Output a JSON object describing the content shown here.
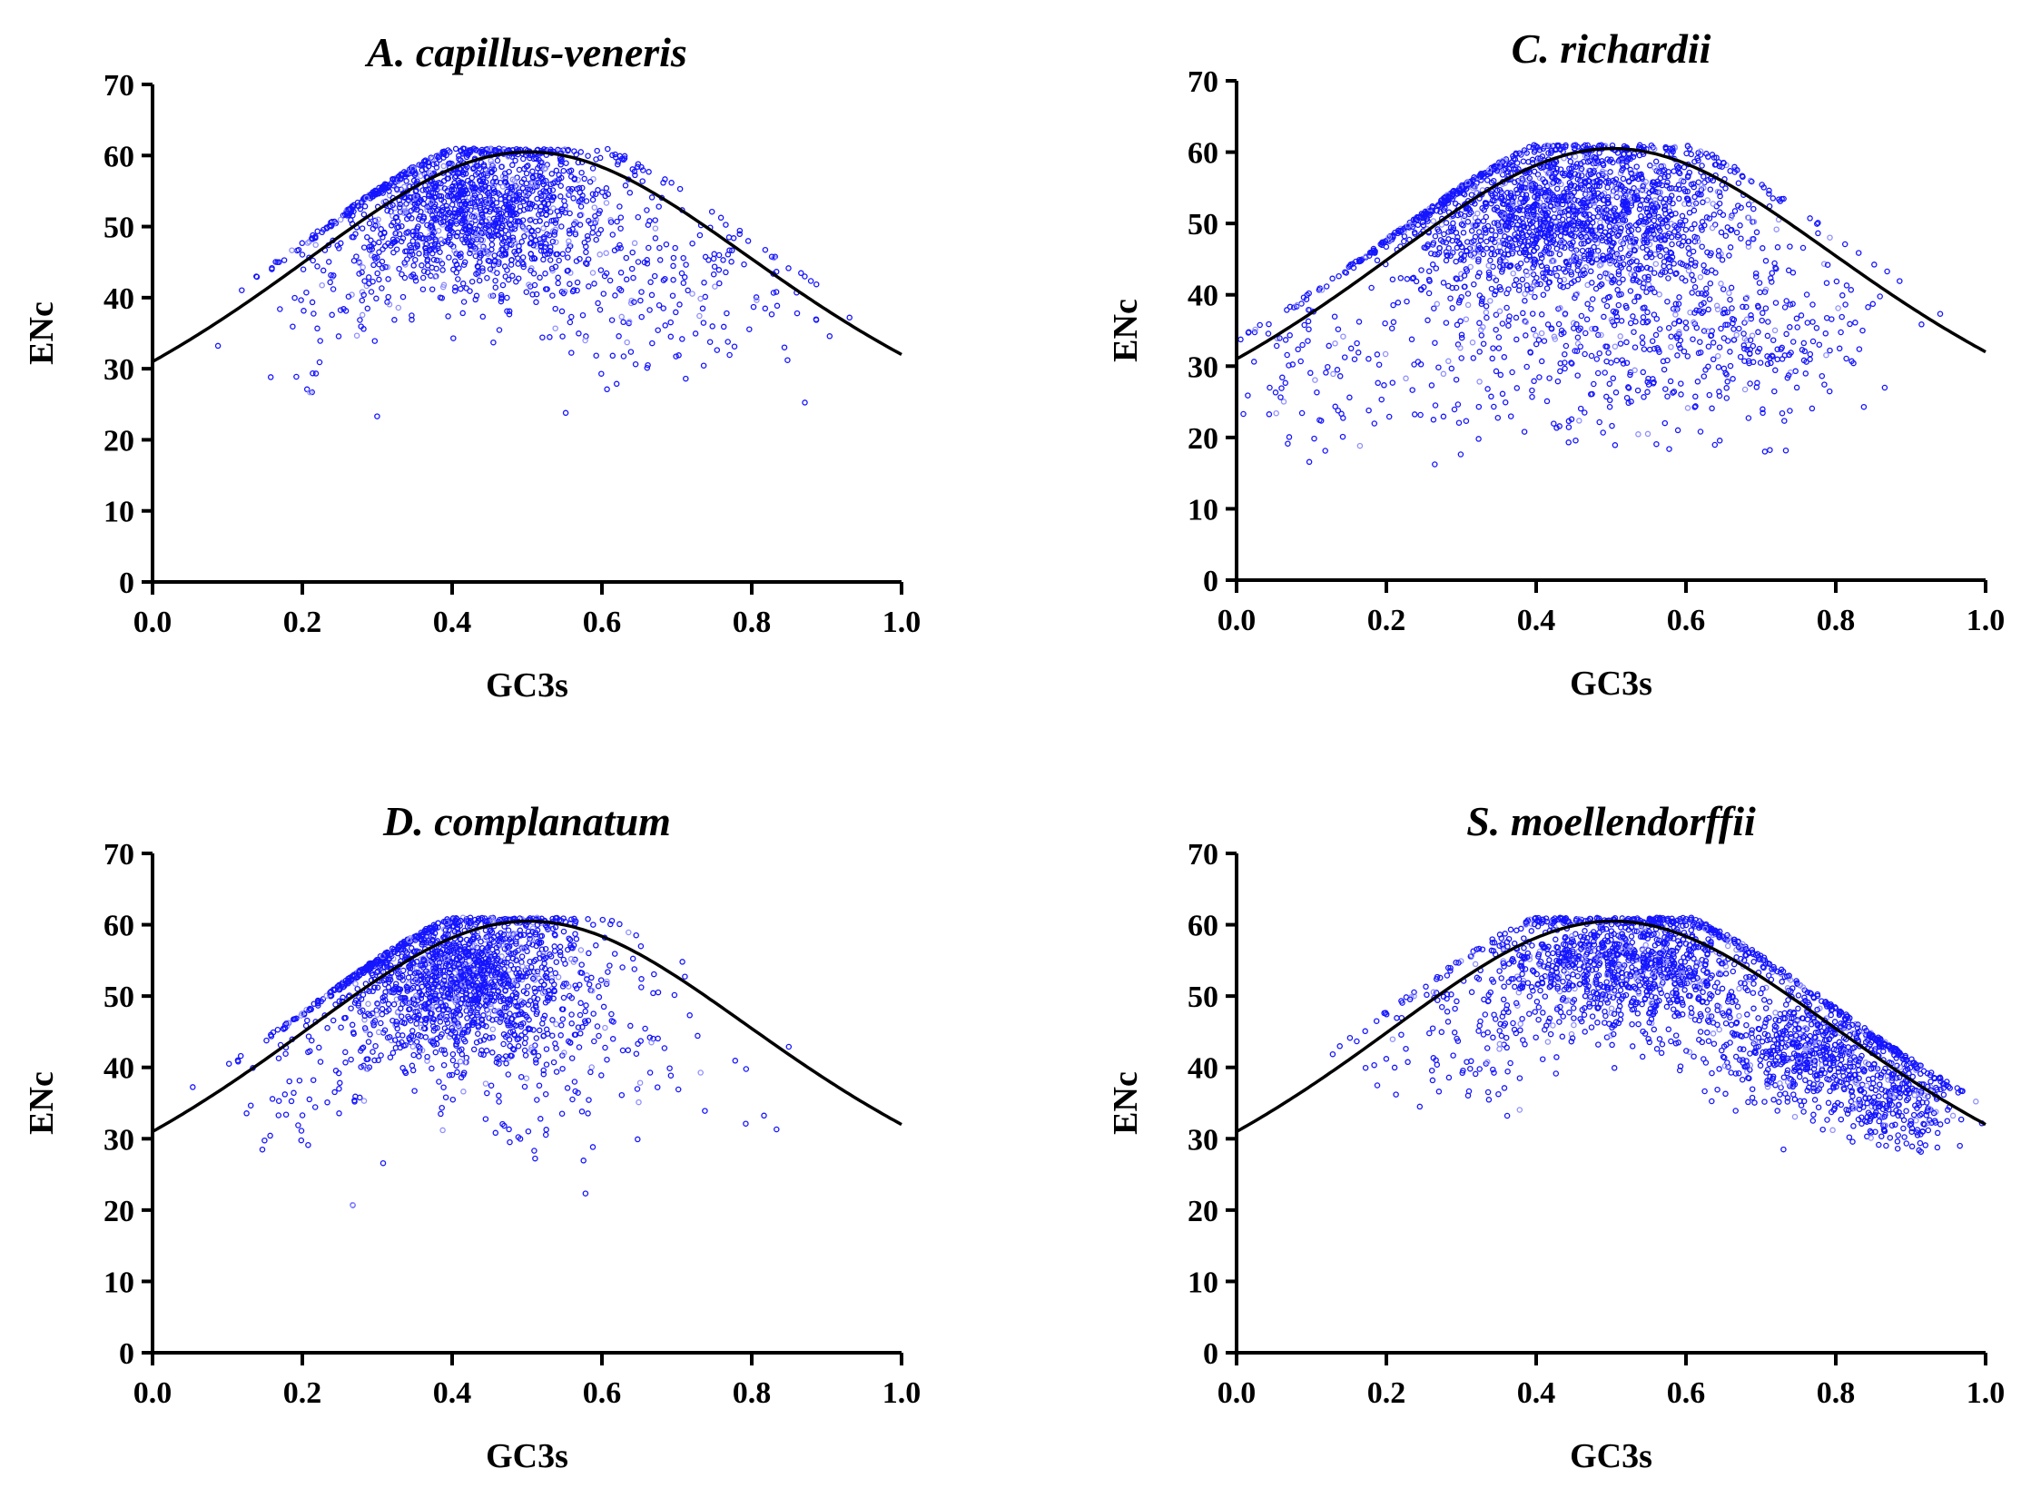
{
  "colors": {
    "point": "#1515ff",
    "point_light": "#8f8fff",
    "curve": "#000000",
    "axis": "#000000"
  },
  "chart_data": [
    {
      "type": "scatter",
      "title": "A. capillus-veneris",
      "xlabel": "GC3s",
      "ylabel": "ENc",
      "xlim": [
        0.0,
        1.0
      ],
      "ylim": [
        0,
        70
      ],
      "xticks": [
        "0.0",
        "0.2",
        "0.4",
        "0.6",
        "0.8",
        "1.0"
      ],
      "yticks": [
        "0",
        "10",
        "20",
        "30",
        "40",
        "50",
        "60",
        "70"
      ],
      "grid": false,
      "legend": "none",
      "series": [
        {
          "name": "expected ENc curve",
          "kind": "line",
          "formula": "2 + GC3s + 29/(GC3s^2 + (1-GC3s)^2)"
        },
        {
          "name": "genes",
          "kind": "scatter",
          "cap": 61,
          "clusters": [
            {
              "cx": 0.43,
              "sx": 0.09,
              "cy": 53,
              "sy": 6,
              "n": 1500
            },
            {
              "cx": 0.68,
              "sx": 0.1,
              "cy": 42,
              "sy": 7,
              "n": 200
            },
            {
              "cx": 0.24,
              "sx": 0.05,
              "cy": 40,
              "sy": 6,
              "n": 80
            }
          ]
        }
      ]
    },
    {
      "type": "scatter",
      "title": "C. richardii",
      "xlabel": "GC3s",
      "ylabel": "ENc",
      "xlim": [
        0.0,
        1.0
      ],
      "ylim": [
        0,
        70
      ],
      "xticks": [
        "0.0",
        "0.2",
        "0.4",
        "0.6",
        "0.8",
        "1.0"
      ],
      "yticks": [
        "0",
        "10",
        "20",
        "30",
        "40",
        "50",
        "60",
        "70"
      ],
      "grid": false,
      "legend": "none",
      "series": [
        {
          "name": "expected ENc curve",
          "kind": "line",
          "formula": "2 + GC3s + 29/(GC3s^2 + (1-GC3s)^2)"
        },
        {
          "name": "genes",
          "kind": "scatter",
          "cap": 61,
          "clusters": [
            {
              "cx": 0.44,
              "sx": 0.12,
              "cy": 52,
              "sy": 6,
              "n": 2000
            },
            {
              "cx": 0.48,
              "sx": 0.17,
              "cy": 33,
              "sy": 7,
              "n": 450
            },
            {
              "cx": 0.7,
              "sx": 0.08,
              "cy": 34,
              "sy": 5,
              "n": 150
            },
            {
              "cx": 0.1,
              "sx": 0.06,
              "cy": 28,
              "sy": 6,
              "n": 60
            }
          ]
        }
      ]
    },
    {
      "type": "scatter",
      "title": "D. complanatum",
      "xlabel": "GC3s",
      "ylabel": "ENc",
      "xlim": [
        0.0,
        1.0
      ],
      "ylim": [
        0,
        70
      ],
      "xticks": [
        "0.0",
        "0.2",
        "0.4",
        "0.6",
        "0.8",
        "1.0"
      ],
      "yticks": [
        "0",
        "10",
        "20",
        "30",
        "40",
        "50",
        "60",
        "70"
      ],
      "grid": false,
      "legend": "none",
      "series": [
        {
          "name": "expected ENc curve",
          "kind": "line",
          "formula": "2 + GC3s + 29/(GC3s^2 + (1-GC3s)^2)"
        },
        {
          "name": "genes",
          "kind": "scatter",
          "cap": 61,
          "clusters": [
            {
              "cx": 0.41,
              "sx": 0.09,
              "cy": 53,
              "sy": 6,
              "n": 1700
            },
            {
              "cx": 0.55,
              "sx": 0.12,
              "cy": 40,
              "sy": 6,
              "n": 120
            },
            {
              "cx": 0.22,
              "sx": 0.05,
              "cy": 38,
              "sy": 6,
              "n": 60
            }
          ]
        }
      ]
    },
    {
      "type": "scatter",
      "title": "S. moellendorffii",
      "xlabel": "GC3s",
      "ylabel": "ENc",
      "xlim": [
        0.0,
        1.0
      ],
      "ylim": [
        0,
        70
      ],
      "xticks": [
        "0.0",
        "0.2",
        "0.4",
        "0.6",
        "0.8",
        "1.0"
      ],
      "yticks": [
        "0",
        "10",
        "20",
        "30",
        "40",
        "50",
        "60",
        "70"
      ],
      "grid": false,
      "legend": "none",
      "series": [
        {
          "name": "expected ENc curve",
          "kind": "line",
          "formula": "2 + GC3s + 29/(GC3s^2 + (1-GC3s)^2)"
        },
        {
          "name": "genes",
          "kind": "scatter",
          "cap": 61,
          "clusters": [
            {
              "cx": 0.53,
              "sx": 0.1,
              "cy": 55,
              "sy": 5,
              "n": 1300
            },
            {
              "cx": 0.78,
              "sx": 0.07,
              "cy": 43,
              "sy": 4,
              "n": 700
            },
            {
              "cx": 0.88,
              "sx": 0.04,
              "cy": 35,
              "sy": 3,
              "n": 250
            },
            {
              "cx": 0.3,
              "sx": 0.07,
              "cy": 45,
              "sy": 5,
              "n": 120
            }
          ]
        }
      ]
    }
  ]
}
